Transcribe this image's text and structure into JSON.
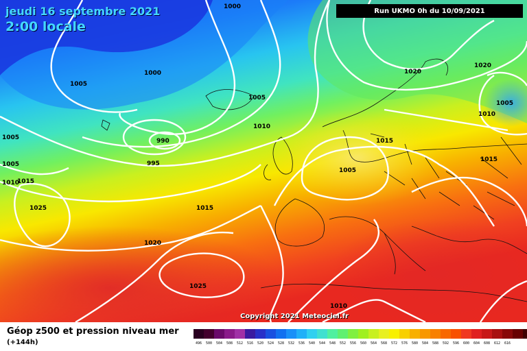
{
  "header": {
    "date_line": "jeudi 16 septembre 2021",
    "time_line": "2:00 locale",
    "run_info": "Run UKMO 0h du 10/09/2021"
  },
  "footer": {
    "copyright": "Copyright 2021 Meteociel.fr",
    "legend_title": "Géop z500 et pression niveau mer",
    "legend_sub": "(+144h)"
  },
  "scale": {
    "colors": [
      "#2a0020",
      "#44002e",
      "#6a0a6a",
      "#8a1a8a",
      "#a030a6",
      "#3a1aa0",
      "#2830c8",
      "#1850e0",
      "#1070f0",
      "#1890f8",
      "#20b0f8",
      "#30d0f0",
      "#40e0d0",
      "#50f0a0",
      "#60f070",
      "#80f040",
      "#a0f020",
      "#c8f020",
      "#e8f020",
      "#f8f000",
      "#f8d000",
      "#f8b000",
      "#f89800",
      "#f88000",
      "#f86800",
      "#f85000",
      "#f03820",
      "#e02020",
      "#c81818",
      "#a81010",
      "#880808",
      "#680000",
      "#400000"
    ],
    "ticks": [
      "496",
      "500",
      "504",
      "508",
      "512",
      "516",
      "520",
      "524",
      "528",
      "532",
      "536",
      "540",
      "544",
      "548",
      "552",
      "556",
      "560",
      "564",
      "568",
      "572",
      "576",
      "580",
      "584",
      "588",
      "592",
      "596",
      "600",
      "604",
      "608",
      "612",
      "616"
    ]
  },
  "isobars": [
    {
      "label": "1000",
      "pos": "top"
    },
    {
      "label": "1005",
      "pos": "greenland"
    },
    {
      "label": "1000",
      "pos": "mid-atlantic"
    },
    {
      "label": "1005",
      "pos": "iceland-east"
    },
    {
      "label": "990",
      "pos": "low-center"
    },
    {
      "label": "995",
      "pos": "low-ring"
    },
    {
      "label": "1010",
      "pos": "atlantic"
    },
    {
      "label": "1005",
      "pos": "left"
    },
    {
      "label": "1005",
      "pos": "left-2"
    },
    {
      "label": "1010",
      "pos": "left-3"
    },
    {
      "label": "1015",
      "pos": "left-4"
    },
    {
      "label": "1025",
      "pos": "azores"
    },
    {
      "label": "1015",
      "pos": "mid"
    },
    {
      "label": "1020",
      "pos": "south-atlantic"
    },
    {
      "label": "1025",
      "pos": "south-high"
    },
    {
      "label": "1020",
      "pos": "scandinavia"
    },
    {
      "label": "1020",
      "pos": "russia"
    },
    {
      "label": "1010",
      "pos": "east"
    },
    {
      "label": "1005",
      "pos": "east-low"
    },
    {
      "label": "1015",
      "pos": "baltic"
    },
    {
      "label": "1005",
      "pos": "germany"
    },
    {
      "label": "1015",
      "pos": "east-europe"
    },
    {
      "label": "1010",
      "pos": "north-africa"
    }
  ]
}
